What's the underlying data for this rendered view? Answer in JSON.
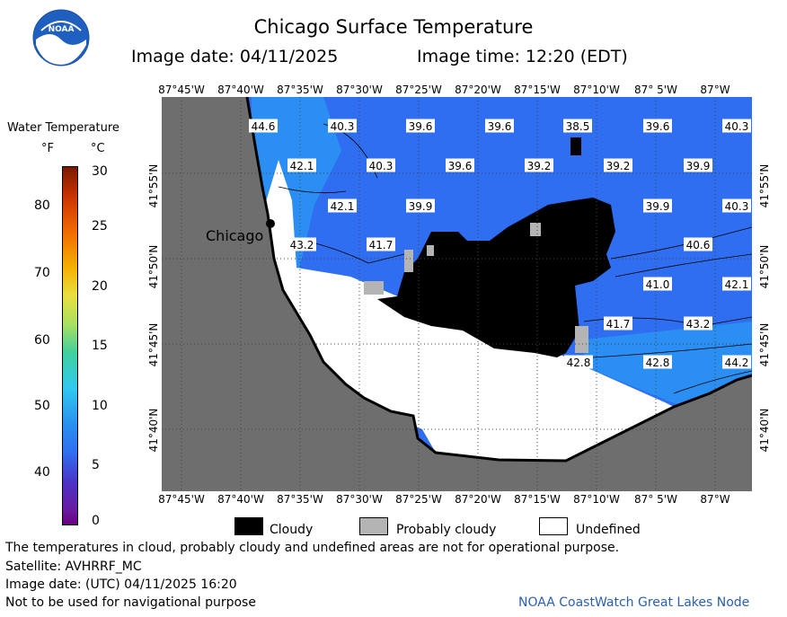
{
  "header": {
    "title": "Chicago Surface Temperature",
    "image_date": "Image date: 04/11/2025",
    "image_time": "Image time: 12:20 (EDT)"
  },
  "logo": {
    "text": "NOAA"
  },
  "legend": {
    "title": "Water Temperature",
    "unit_f": "°F",
    "unit_c": "°C",
    "f_ticks": [
      "80",
      "70",
      "60",
      "50",
      "40"
    ],
    "c_ticks": [
      "30",
      "25",
      "20",
      "15",
      "10",
      "5",
      "0"
    ]
  },
  "map": {
    "lon_labels": [
      "87°45'W",
      "87°40'W",
      "87°35'W",
      "87°30'W",
      "87°25'W",
      "87°20'W",
      "87°15'W",
      "87°10'W",
      "87° 5'W",
      "87°W"
    ],
    "lat_labels": [
      "41°55'N",
      "41°50'N",
      "41°45'N",
      "41°40'N"
    ],
    "city_label": "Chicago",
    "temperatures": [
      {
        "v": "44.6"
      },
      {
        "v": "40.3"
      },
      {
        "v": "39.6"
      },
      {
        "v": "39.6"
      },
      {
        "v": "38.5"
      },
      {
        "v": "39.6"
      },
      {
        "v": "40.3"
      },
      {
        "v": "42.1"
      },
      {
        "v": "40.3"
      },
      {
        "v": "39.6"
      },
      {
        "v": "39.2"
      },
      {
        "v": "39.2"
      },
      {
        "v": "39.9"
      },
      {
        "v": "42.1"
      },
      {
        "v": "39.9"
      },
      {
        "v": "39.9"
      },
      {
        "v": "40.3"
      },
      {
        "v": "43.2"
      },
      {
        "v": "41.7"
      },
      {
        "v": "40.6"
      },
      {
        "v": "41.0"
      },
      {
        "v": "42.1"
      },
      {
        "v": "41.7"
      },
      {
        "v": "43.2"
      },
      {
        "v": "42.8"
      },
      {
        "v": "42.8"
      },
      {
        "v": "44.2"
      }
    ],
    "colors": {
      "land": "#6e6e6e",
      "water": "#2f6ef0",
      "cloud": "#000000",
      "probably_cloudy": "#b4b4b4",
      "undefined": "#ffffff"
    }
  },
  "key": {
    "cloudy": "Cloudy",
    "probably_cloudy": "Probably cloudy",
    "undefined": "Undefined"
  },
  "footer": {
    "line1": "The temperatures in cloud, probably cloudy and undefined areas are not for operational purpose.",
    "line2": "Satellite: AVHRRF_MC",
    "line3": "Image date: (UTC) 04/11/2025  16:20",
    "line4": "Not to be used for navigational purpose",
    "credit": "NOAA CoastWatch Great Lakes Node"
  }
}
